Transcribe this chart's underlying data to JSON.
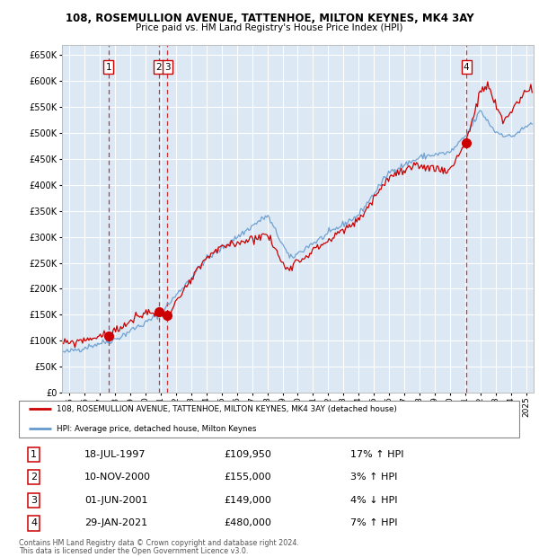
{
  "title": "108, ROSEMULLION AVENUE, TATTENHOE, MILTON KEYNES, MK4 3AY",
  "subtitle": "Price paid vs. HM Land Registry's House Price Index (HPI)",
  "ylim": [
    0,
    670000
  ],
  "yticks": [
    0,
    50000,
    100000,
    150000,
    200000,
    250000,
    300000,
    350000,
    400000,
    450000,
    500000,
    550000,
    600000,
    650000
  ],
  "xlim_start": 1994.5,
  "xlim_end": 2025.5,
  "bg_color": "#dce9f5",
  "grid_color": "#ffffff",
  "transactions": [
    {
      "id": 1,
      "date_str": "18-JUL-1997",
      "year": 1997.55,
      "price": 109950,
      "pct": "17%",
      "dir": "↑"
    },
    {
      "id": 2,
      "date_str": "10-NOV-2000",
      "year": 2000.87,
      "price": 155000,
      "pct": "3%",
      "dir": "↑"
    },
    {
      "id": 3,
      "date_str": "01-JUN-2001",
      "year": 2001.42,
      "price": 149000,
      "pct": "4%",
      "dir": "↓"
    },
    {
      "id": 4,
      "date_str": "29-JAN-2021",
      "year": 2021.08,
      "price": 480000,
      "pct": "7%",
      "dir": "↑"
    }
  ],
  "legend_line1": "108, ROSEMULLION AVENUE, TATTENHOE, MILTON KEYNES, MK4 3AY (detached house)",
  "legend_line2": "HPI: Average price, detached house, Milton Keynes",
  "footer1": "Contains HM Land Registry data © Crown copyright and database right 2024.",
  "footer2": "This data is licensed under the Open Government Licence v3.0.",
  "red_color": "#cc0000",
  "blue_color": "#6699cc",
  "noise_seed_hpi": 42,
  "noise_seed_price": 99,
  "n_points": 370
}
